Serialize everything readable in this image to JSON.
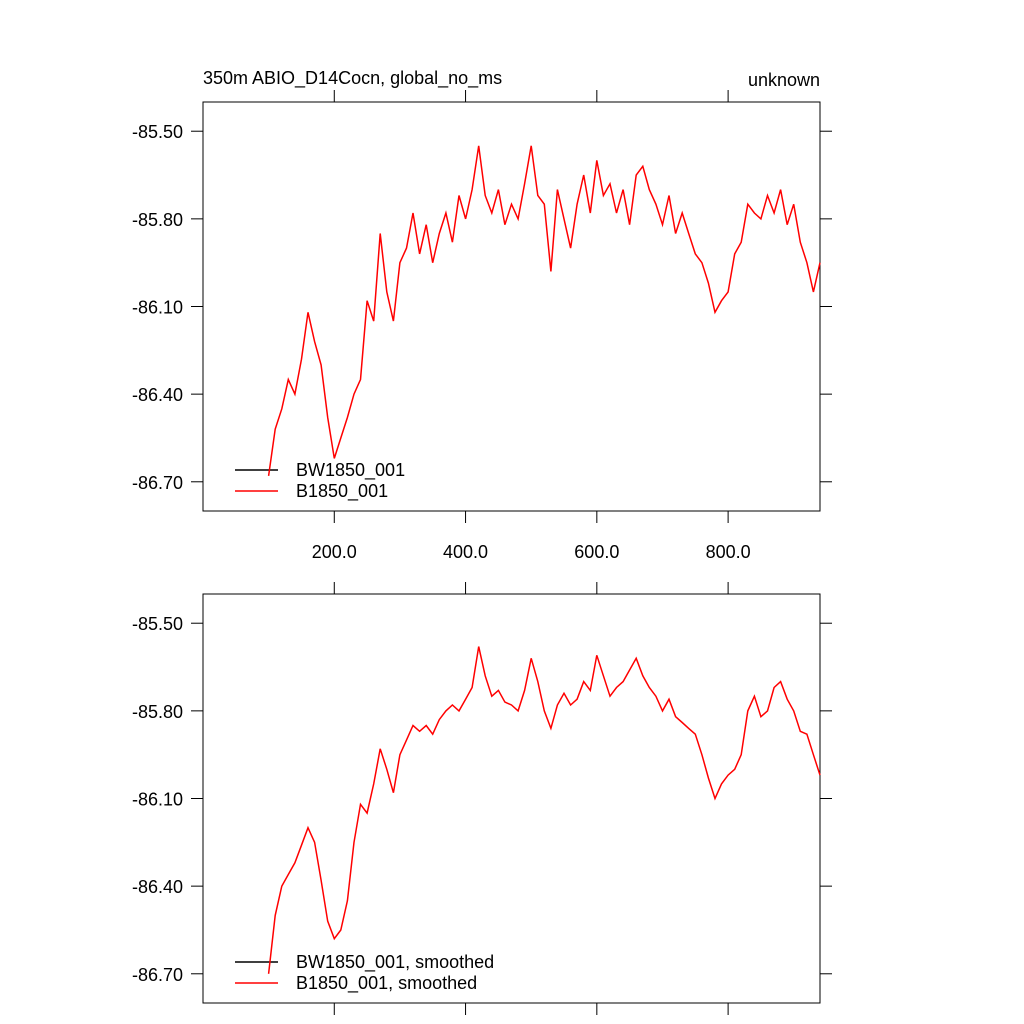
{
  "chart_data": [
    {
      "type": "line",
      "title": "350m ABIO_D14Cocn, global_no_ms",
      "right_title": "unknown",
      "x": [
        100,
        110,
        120,
        130,
        140,
        150,
        160,
        170,
        180,
        190,
        200,
        210,
        220,
        230,
        240,
        250,
        260,
        270,
        280,
        290,
        300,
        310,
        320,
        330,
        340,
        350,
        360,
        370,
        380,
        390,
        400,
        410,
        420,
        430,
        440,
        450,
        460,
        470,
        480,
        490,
        500,
        510,
        520,
        530,
        540,
        550,
        560,
        570,
        580,
        590,
        600,
        610,
        620,
        630,
        640,
        650,
        660,
        670,
        680,
        690,
        700,
        710,
        720,
        730,
        740,
        750,
        760,
        770,
        780,
        790,
        800,
        810,
        820,
        830,
        840,
        850,
        860,
        870,
        880,
        890,
        900,
        910,
        920,
        930,
        940
      ],
      "series": [
        {
          "name": "BW1850_001",
          "color": "#000000",
          "values": [
            null,
            null,
            null,
            null,
            null,
            null,
            null,
            null,
            null,
            null,
            null,
            null,
            null,
            null,
            null,
            null,
            null,
            null,
            null,
            null,
            null,
            null,
            null,
            null,
            null,
            null,
            null,
            null,
            null,
            null,
            null,
            null,
            null,
            null,
            null,
            null,
            null,
            null,
            null,
            null,
            null,
            null,
            null,
            null,
            null,
            null,
            null,
            null,
            null,
            null,
            null,
            null,
            null,
            null,
            null,
            null,
            null,
            null,
            null,
            null,
            null,
            null,
            null,
            null,
            null,
            null,
            null,
            null,
            null,
            null,
            null,
            null,
            null,
            null,
            null,
            null,
            null,
            null,
            null,
            null,
            null,
            null,
            null,
            null,
            null
          ]
        },
        {
          "name": "B1850_001",
          "color": "#ff0000",
          "values": [
            -86.68,
            -86.52,
            -86.45,
            -86.35,
            -86.4,
            -86.28,
            -86.12,
            -86.22,
            -86.3,
            -86.48,
            -86.62,
            -86.55,
            -86.48,
            -86.4,
            -86.35,
            -86.08,
            -86.15,
            -85.85,
            -86.05,
            -86.15,
            -85.95,
            -85.9,
            -85.78,
            -85.92,
            -85.82,
            -85.95,
            -85.85,
            -85.78,
            -85.88,
            -85.72,
            -85.8,
            -85.7,
            -85.55,
            -85.72,
            -85.78,
            -85.7,
            -85.82,
            -85.75,
            -85.8,
            -85.68,
            -85.55,
            -85.72,
            -85.75,
            -85.98,
            -85.7,
            -85.8,
            -85.9,
            -85.75,
            -85.65,
            -85.78,
            -85.6,
            -85.72,
            -85.68,
            -85.78,
            -85.7,
            -85.82,
            -85.65,
            -85.62,
            -85.7,
            -85.75,
            -85.82,
            -85.72,
            -85.85,
            -85.78,
            -85.85,
            -85.92,
            -85.95,
            -86.02,
            -86.12,
            -86.08,
            -86.05,
            -85.92,
            -85.88,
            -85.75,
            -85.78,
            -85.8,
            -85.72,
            -85.78,
            -85.7,
            -85.82,
            -85.75,
            -85.88,
            -85.95,
            -86.05,
            -85.95
          ]
        }
      ],
      "xlim": [
        0,
        940
      ],
      "xticks": [
        {
          "value": 200,
          "label": "200.0"
        },
        {
          "value": 400,
          "label": "400.0"
        },
        {
          "value": 600,
          "label": "600.0"
        },
        {
          "value": 800,
          "label": "800.0"
        }
      ],
      "ylim": [
        -86.8,
        -85.4
      ],
      "yticks": [
        {
          "value": -85.5,
          "label": "-85.50"
        },
        {
          "value": -85.8,
          "label": "-85.80"
        },
        {
          "value": -86.1,
          "label": "-86.10"
        },
        {
          "value": -86.4,
          "label": "-86.40"
        },
        {
          "value": -86.7,
          "label": "-86.70"
        }
      ],
      "x_tick_labels": true,
      "legend": "lower left"
    },
    {
      "type": "line",
      "x": [
        100,
        110,
        120,
        130,
        140,
        150,
        160,
        170,
        180,
        190,
        200,
        210,
        220,
        230,
        240,
        250,
        260,
        270,
        280,
        290,
        300,
        310,
        320,
        330,
        340,
        350,
        360,
        370,
        380,
        390,
        400,
        410,
        420,
        430,
        440,
        450,
        460,
        470,
        480,
        490,
        500,
        510,
        520,
        530,
        540,
        550,
        560,
        570,
        580,
        590,
        600,
        610,
        620,
        630,
        640,
        650,
        660,
        670,
        680,
        690,
        700,
        710,
        720,
        730,
        740,
        750,
        760,
        770,
        780,
        790,
        800,
        810,
        820,
        830,
        840,
        850,
        860,
        870,
        880,
        890,
        900,
        910,
        920,
        930,
        940
      ],
      "series": [
        {
          "name": "BW1850_001, smoothed",
          "color": "#000000",
          "values": [
            null,
            null,
            null,
            null,
            null,
            null,
            null,
            null,
            null,
            null,
            null,
            null,
            null,
            null,
            null,
            null,
            null,
            null,
            null,
            null,
            null,
            null,
            null,
            null,
            null,
            null,
            null,
            null,
            null,
            null,
            null,
            null,
            null,
            null,
            null,
            null,
            null,
            null,
            null,
            null,
            null,
            null,
            null,
            null,
            null,
            null,
            null,
            null,
            null,
            null,
            null,
            null,
            null,
            null,
            null,
            null,
            null,
            null,
            null,
            null,
            null,
            null,
            null,
            null,
            null,
            null,
            null,
            null,
            null,
            null,
            null,
            null,
            null,
            null,
            null,
            null,
            null,
            null,
            null,
            null,
            null,
            null,
            null,
            null,
            null
          ]
        },
        {
          "name": "B1850_001, smoothed",
          "color": "#ff0000",
          "values": [
            -86.7,
            -86.5,
            -86.4,
            -86.36,
            -86.32,
            -86.26,
            -86.2,
            -86.25,
            -86.38,
            -86.52,
            -86.58,
            -86.55,
            -86.45,
            -86.25,
            -86.12,
            -86.15,
            -86.05,
            -85.93,
            -86.0,
            -86.08,
            -85.95,
            -85.9,
            -85.85,
            -85.87,
            -85.85,
            -85.88,
            -85.83,
            -85.8,
            -85.78,
            -85.8,
            -85.76,
            -85.72,
            -85.58,
            -85.68,
            -85.75,
            -85.73,
            -85.77,
            -85.78,
            -85.8,
            -85.73,
            -85.62,
            -85.7,
            -85.8,
            -85.86,
            -85.78,
            -85.74,
            -85.78,
            -85.76,
            -85.7,
            -85.73,
            -85.61,
            -85.68,
            -85.75,
            -85.72,
            -85.7,
            -85.66,
            -85.62,
            -85.68,
            -85.72,
            -85.75,
            -85.8,
            -85.76,
            -85.82,
            -85.84,
            -85.86,
            -85.88,
            -85.95,
            -86.03,
            -86.1,
            -86.05,
            -86.02,
            -86.0,
            -85.95,
            -85.8,
            -85.75,
            -85.82,
            -85.8,
            -85.72,
            -85.7,
            -85.76,
            -85.8,
            -85.87,
            -85.88,
            -85.95,
            -86.02
          ]
        }
      ],
      "xlim": [
        0,
        940
      ],
      "xticks": [
        200,
        400,
        600,
        800
      ],
      "ylim": [
        -86.8,
        -85.4
      ],
      "yticks": [
        {
          "value": -85.5,
          "label": "-85.50"
        },
        {
          "value": -85.8,
          "label": "-85.80"
        },
        {
          "value": -86.1,
          "label": "-86.10"
        },
        {
          "value": -86.4,
          "label": "-86.40"
        },
        {
          "value": -86.7,
          "label": "-86.70"
        }
      ],
      "x_tick_labels": false,
      "legend": "lower left"
    }
  ]
}
